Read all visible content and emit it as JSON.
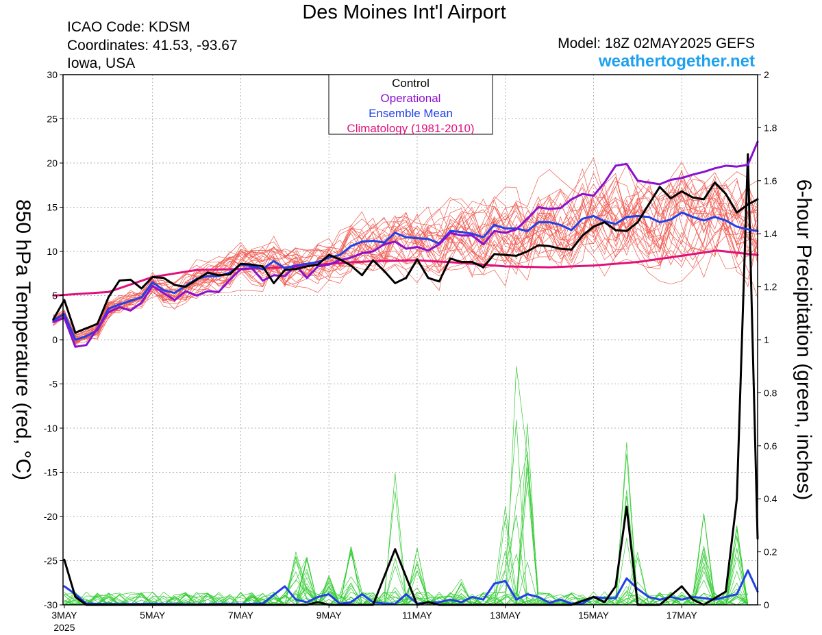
{
  "header": {
    "title": "Des Moines Int'l Airport",
    "icao": "ICAO Code: KDSM",
    "coordinates": "Coordinates: 41.53, -93.67",
    "region": "Iowa, USA",
    "model": "Model: 18Z 02MAY2025 GEFS",
    "site": "weathertogether.net"
  },
  "chart_data": {
    "type": "line",
    "ylabel": "850 hPa Temperature (red, °C)",
    "y2label": "6-hour Precipitation (green, inches)",
    "ylim": [
      -30,
      30
    ],
    "y2lim": [
      0,
      2
    ],
    "yticks": [
      30,
      25,
      20,
      15,
      10,
      5,
      0,
      -5,
      -10,
      -15,
      -20,
      -25,
      -30
    ],
    "y2ticks": [
      2,
      1.8,
      1.6,
      1.4,
      1.2,
      1,
      0.8,
      0.6,
      0.4,
      0.2,
      0
    ],
    "xlim_days": [
      -0.03,
      15.72
    ],
    "x_tick_labels": [
      {
        "day": 0,
        "label": "3MAY",
        "sub": "2025"
      },
      {
        "day": 2,
        "label": "5MAY",
        "sub": ""
      },
      {
        "day": 4,
        "label": "7MAY",
        "sub": ""
      },
      {
        "day": 6,
        "label": "9MAY",
        "sub": ""
      },
      {
        "day": 8,
        "label": "11MAY",
        "sub": ""
      },
      {
        "day": 10,
        "label": "13MAY",
        "sub": ""
      },
      {
        "day": 12,
        "label": "15MAY",
        "sub": ""
      },
      {
        "day": 14,
        "label": "17MAY",
        "sub": ""
      }
    ],
    "legend": {
      "placement": "top-center",
      "entries": [
        {
          "label": "Control",
          "color": "#000000"
        },
        {
          "label": "Operational",
          "color": "#8a10d0"
        },
        {
          "label": "Ensemble Mean",
          "color": "#2040e8"
        },
        {
          "label": "Climatology (1981-2010)",
          "color": "#e0107a"
        }
      ]
    },
    "colors": {
      "control": "#000000",
      "operational": "#8a10d0",
      "ensemble_mean": "#2040e8",
      "climatology": "#e0107a",
      "members_temp": "#f05a50",
      "members_precip": "#33cc33"
    },
    "series": {
      "climatology_temp": {
        "x": [
          -0.25,
          1,
          2,
          3,
          4,
          5,
          6,
          7,
          8,
          9,
          10,
          11,
          12,
          13,
          14,
          14.8,
          15.72
        ],
        "y": [
          5.0,
          5.4,
          7.1,
          7.9,
          8.0,
          8.2,
          8.6,
          8.9,
          9.0,
          8.7,
          8.3,
          8.2,
          8.4,
          8.8,
          9.5,
          10.1,
          9.6
        ]
      },
      "ensemble_mean_temp": {
        "x": [
          -0.25,
          0,
          0.25,
          0.5,
          0.75,
          1,
          1.25,
          1.5,
          1.75,
          2,
          2.25,
          2.5,
          2.75,
          3,
          3.25,
          3.5,
          3.75,
          4,
          4.25,
          4.5,
          4.75,
          5,
          5.25,
          5.5,
          5.75,
          6,
          6.25,
          6.5,
          6.75,
          7,
          7.25,
          7.5,
          7.75,
          8,
          8.25,
          8.5,
          8.75,
          9,
          9.25,
          9.5,
          9.75,
          10,
          10.25,
          10.5,
          10.75,
          11,
          11.25,
          11.5,
          11.75,
          12,
          12.25,
          12.5,
          12.75,
          13,
          13.25,
          13.5,
          13.75,
          14,
          14.25,
          14.5,
          14.75,
          15,
          15.25,
          15.5,
          15.72
        ],
        "y": [
          2.2,
          2.9,
          0.0,
          0.4,
          1.1,
          3.5,
          4.0,
          4.4,
          4.8,
          6.5,
          5.6,
          5.3,
          6.1,
          6.9,
          7.2,
          7.2,
          7.6,
          8.5,
          8.3,
          8.0,
          8.9,
          8.1,
          8.4,
          8.6,
          8.8,
          9.3,
          9.6,
          10.6,
          11.1,
          11.2,
          11.0,
          12.1,
          11.6,
          11.5,
          11.4,
          10.9,
          12.3,
          12.2,
          12.0,
          11.6,
          13.0,
          12.6,
          12.6,
          12.3,
          13.3,
          13.3,
          13.0,
          12.4,
          13.7,
          14.0,
          13.4,
          13.1,
          13.9,
          14.0,
          13.9,
          13.3,
          13.6,
          14.4,
          13.9,
          13.5,
          13.9,
          13.5,
          12.8,
          12.5,
          12.3
        ]
      },
      "operational_temp": {
        "x": [
          -0.25,
          0,
          0.25,
          0.5,
          0.75,
          1,
          1.25,
          1.5,
          1.75,
          2,
          2.25,
          2.5,
          2.75,
          3,
          3.25,
          3.5,
          3.75,
          4,
          4.25,
          4.5,
          4.75,
          5,
          5.25,
          5.5,
          5.75,
          6,
          6.25,
          6.5,
          6.75,
          7,
          7.25,
          7.5,
          7.75,
          8,
          8.25,
          8.5,
          8.75,
          9,
          9.25,
          9.5,
          9.75,
          10,
          10.25,
          10.5,
          10.75,
          11,
          11.25,
          11.5,
          11.75,
          12,
          12.25,
          12.5,
          12.75,
          13,
          13.25,
          13.5,
          13.75,
          14,
          14.25,
          14.5,
          14.75,
          15,
          15.25,
          15.5,
          15.72
        ],
        "y": [
          2.0,
          2.5,
          -0.8,
          -0.6,
          1.3,
          3.1,
          3.7,
          3.3,
          4.2,
          6.1,
          5.3,
          4.5,
          5.5,
          5.0,
          5.5,
          5.4,
          6.8,
          8.0,
          8.1,
          6.7,
          7.3,
          7.2,
          8.4,
          7.0,
          8.3,
          8.5,
          9.0,
          9.3,
          9.8,
          10.0,
          10.8,
          11.1,
          10.3,
          10.5,
          10.1,
          10.8,
          12.1,
          11.8,
          11.8,
          10.8,
          12.3,
          12.1,
          12.5,
          13.7,
          15.0,
          14.8,
          14.9,
          15.9,
          16.5,
          16.3,
          17.8,
          19.7,
          19.9,
          18.0,
          17.8,
          17.6,
          18.1,
          18.3,
          18.7,
          19.0,
          19.4,
          19.7,
          19.6,
          19.8,
          22.4
        ]
      },
      "control_temp": {
        "x": [
          -0.25,
          0,
          0.25,
          0.5,
          0.75,
          1,
          1.25,
          1.5,
          1.75,
          2,
          2.25,
          2.5,
          2.75,
          3,
          3.25,
          3.5,
          3.75,
          4,
          4.25,
          4.5,
          4.75,
          5,
          5.25,
          5.5,
          5.75,
          6,
          6.25,
          6.5,
          6.75,
          7,
          7.25,
          7.5,
          7.75,
          8,
          8.25,
          8.5,
          8.75,
          9,
          9.25,
          9.5,
          9.75,
          10,
          10.25,
          10.5,
          10.75,
          11,
          11.25,
          11.5,
          11.75,
          12,
          12.25,
          12.5,
          12.75,
          13,
          13.25,
          13.5,
          13.75,
          14,
          14.25,
          14.5,
          14.75,
          15,
          15.25,
          15.5,
          15.72
        ],
        "y": [
          2.3,
          4.5,
          0.8,
          1.3,
          1.8,
          4.8,
          6.7,
          6.8,
          5.8,
          7.1,
          7.0,
          6.2,
          6.0,
          6.8,
          7.6,
          7.3,
          7.4,
          8.6,
          8.5,
          8.3,
          6.4,
          7.9,
          8.0,
          8.3,
          8.5,
          9.6,
          9.1,
          8.4,
          7.3,
          9.0,
          7.8,
          6.4,
          7.0,
          9.1,
          7.0,
          6.6,
          9.2,
          8.8,
          8.8,
          8.2,
          9.7,
          9.6,
          9.5,
          10.0,
          10.7,
          10.6,
          10.3,
          10.2,
          11.8,
          12.8,
          13.3,
          12.4,
          12.3,
          13.3,
          15.3,
          17.3,
          16.0,
          16.8,
          16.1,
          15.9,
          17.8,
          16.5,
          14.4,
          15.3,
          15.9
        ]
      },
      "ensemble_mean_precip": {
        "x": [
          0,
          0.25,
          0.5,
          1,
          1.5,
          2,
          2.5,
          3,
          3.5,
          4,
          4.5,
          5,
          5.25,
          5.5,
          5.75,
          6,
          6.25,
          6.5,
          6.75,
          7,
          7.25,
          7.5,
          7.75,
          8,
          8.25,
          8.5,
          8.75,
          9,
          9.25,
          9.5,
          9.75,
          10,
          10.25,
          10.5,
          10.75,
          11,
          11.25,
          11.5,
          11.75,
          12,
          12.25,
          12.5,
          12.75,
          13,
          13.25,
          13.5,
          13.75,
          14,
          14.25,
          14.5,
          14.75,
          15,
          15.25,
          15.5,
          15.72
        ],
        "y": [
          0.07,
          0.04,
          0.005,
          0.003,
          0.003,
          0.004,
          0.003,
          0.002,
          0.003,
          0.003,
          0.005,
          0.07,
          0.02,
          0.01,
          0.03,
          0.04,
          0.004,
          0.01,
          0.04,
          0.01,
          0.005,
          0.003,
          0.04,
          0.005,
          0.008,
          0.01,
          0.02,
          0.01,
          0.03,
          0.02,
          0.08,
          0.09,
          0.02,
          0.04,
          0.03,
          0.008,
          0.02,
          0.005,
          0.005,
          0.03,
          0.025,
          0.025,
          0.1,
          0.06,
          0.03,
          0.02,
          0.03,
          0.02,
          0.03,
          0.025,
          0.02,
          0.03,
          0.04,
          0.13,
          0.05
        ]
      },
      "control_precip": {
        "x": [
          0,
          0.25,
          0.5,
          1,
          2,
          3,
          4,
          5,
          5.5,
          5.75,
          6,
          6.5,
          7,
          7.5,
          8,
          8.25,
          8.5,
          9,
          9.5,
          10,
          10.5,
          11,
          11.5,
          12,
          12.25,
          12.5,
          12.75,
          13,
          13.25,
          13.5,
          14,
          14.25,
          14.5,
          15,
          15.25,
          15.5,
          15.72
        ],
        "y": [
          0.17,
          0.03,
          0,
          0,
          0,
          0,
          0,
          0,
          0,
          0.01,
          0,
          0,
          0,
          0.21,
          0,
          0.01,
          0,
          0,
          0,
          0,
          0,
          0,
          0,
          0.03,
          0.01,
          0.07,
          0.37,
          0,
          0,
          0,
          0.07,
          0.02,
          0,
          0.05,
          0.4,
          1.7,
          0.25
        ]
      }
    }
  }
}
